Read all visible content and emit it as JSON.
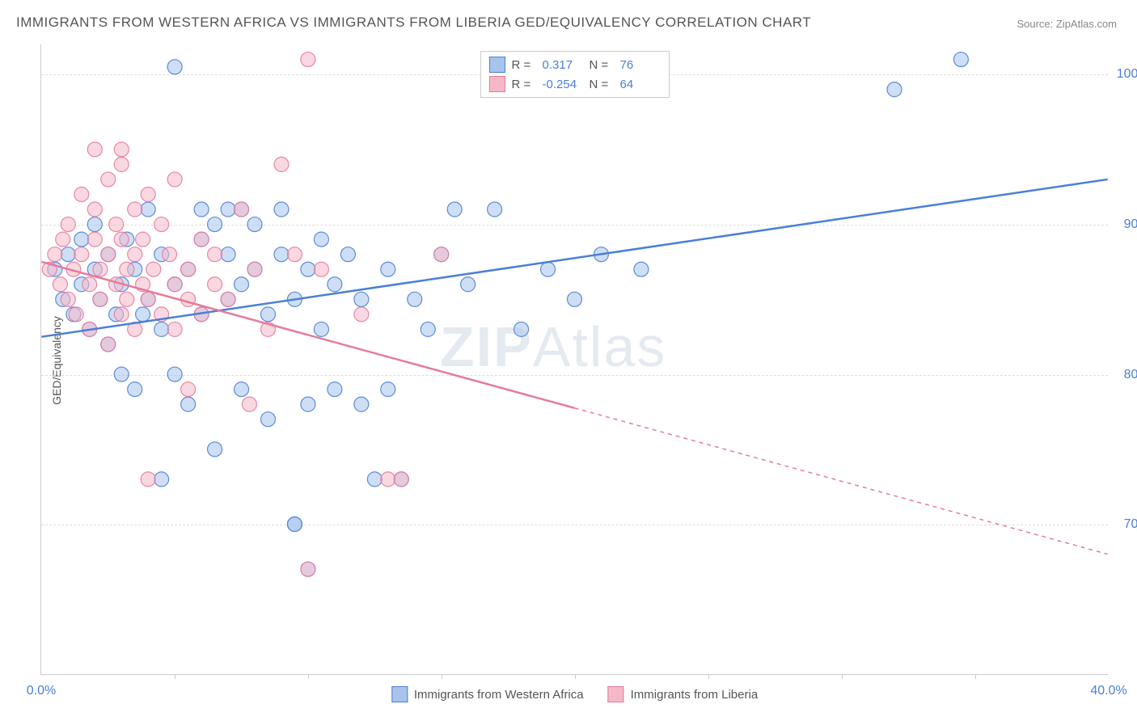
{
  "title": "IMMIGRANTS FROM WESTERN AFRICA VS IMMIGRANTS FROM LIBERIA GED/EQUIVALENCY CORRELATION CHART",
  "source": "Source: ZipAtlas.com",
  "ylabel": "GED/Equivalency",
  "watermark_bold": "ZIP",
  "watermark_rest": "Atlas",
  "chart": {
    "type": "scatter",
    "xlim": [
      0,
      40
    ],
    "ylim": [
      60,
      102
    ],
    "xticks": [
      0,
      40
    ],
    "xtick_labels": [
      "0.0%",
      "40.0%"
    ],
    "xtick_marks": [
      5,
      10,
      15,
      20,
      25,
      30,
      35
    ],
    "yticks": [
      70,
      80,
      90,
      100
    ],
    "ytick_labels": [
      "70.0%",
      "80.0%",
      "90.0%",
      "100.0%"
    ],
    "grid_color": "#dddddd",
    "background_color": "#ffffff",
    "axis_color": "#cccccc",
    "tick_label_color": "#4a7fd8",
    "title_fontsize": 17,
    "label_fontsize": 14,
    "tick_fontsize": 16,
    "marker_radius": 9,
    "marker_opacity": 0.55,
    "marker_stroke_opacity": 0.9,
    "series": [
      {
        "name": "Immigrants from Western Africa",
        "short": "western_africa",
        "color_fill": "#a6c4ec",
        "color_stroke": "#4a7fd8",
        "R": "0.317",
        "N": "76",
        "trend": {
          "x1": 0,
          "y1": 82.5,
          "x2": 40,
          "y2": 93.0,
          "solid_until": 40,
          "line_width": 2.5
        },
        "points": [
          [
            0.5,
            87
          ],
          [
            0.8,
            85
          ],
          [
            1.0,
            88
          ],
          [
            1.2,
            84
          ],
          [
            1.5,
            86
          ],
          [
            1.5,
            89
          ],
          [
            1.8,
            83
          ],
          [
            2.0,
            87
          ],
          [
            2.0,
            90
          ],
          [
            2.2,
            85
          ],
          [
            2.5,
            82
          ],
          [
            2.5,
            88
          ],
          [
            2.8,
            84
          ],
          [
            3.0,
            86
          ],
          [
            3.0,
            80
          ],
          [
            3.2,
            89
          ],
          [
            3.5,
            87
          ],
          [
            3.5,
            79
          ],
          [
            3.8,
            84
          ],
          [
            4.0,
            85
          ],
          [
            4.0,
            91
          ],
          [
            4.5,
            83
          ],
          [
            4.5,
            88
          ],
          [
            5.0,
            86
          ],
          [
            5.0,
            80
          ],
          [
            5.0,
            100.5
          ],
          [
            5.5,
            87
          ],
          [
            5.5,
            78
          ],
          [
            6.0,
            89
          ],
          [
            6.0,
            84
          ],
          [
            6.5,
            90
          ],
          [
            6.5,
            75
          ],
          [
            7.0,
            88
          ],
          [
            7.0,
            85
          ],
          [
            7.0,
            91
          ],
          [
            7.5,
            86
          ],
          [
            7.5,
            79
          ],
          [
            8.0,
            87
          ],
          [
            8.0,
            90
          ],
          [
            8.5,
            84
          ],
          [
            8.5,
            77
          ],
          [
            9.0,
            88
          ],
          [
            9.0,
            91
          ],
          [
            9.5,
            85
          ],
          [
            9.5,
            70
          ],
          [
            10.0,
            87
          ],
          [
            10.0,
            78
          ],
          [
            10.5,
            89
          ],
          [
            10.5,
            83
          ],
          [
            11.0,
            86
          ],
          [
            11.0,
            79
          ],
          [
            11.5,
            88
          ],
          [
            12.0,
            78
          ],
          [
            12.0,
            85
          ],
          [
            12.5,
            73
          ],
          [
            13.0,
            87
          ],
          [
            13.0,
            79
          ],
          [
            13.5,
            73
          ],
          [
            14.0,
            85
          ],
          [
            14.5,
            83
          ],
          [
            15.0,
            88
          ],
          [
            15.5,
            91
          ],
          [
            16.0,
            86
          ],
          [
            17.0,
            91
          ],
          [
            18.0,
            83
          ],
          [
            19.0,
            87
          ],
          [
            20.0,
            85
          ],
          [
            21.0,
            88
          ],
          [
            22.5,
            87
          ],
          [
            32.0,
            99
          ],
          [
            34.5,
            101
          ],
          [
            10.0,
            67
          ],
          [
            9.5,
            70
          ],
          [
            4.5,
            73
          ],
          [
            6.0,
            91
          ],
          [
            7.5,
            91
          ]
        ]
      },
      {
        "name": "Immigrants from Liberia",
        "short": "liberia",
        "color_fill": "#f5b8c8",
        "color_stroke": "#e77a9b",
        "R": "-0.254",
        "N": "64",
        "trend": {
          "x1": 0,
          "y1": 87.5,
          "x2": 40,
          "y2": 68.0,
          "solid_until": 20,
          "line_width": 2.5
        },
        "points": [
          [
            0.3,
            87
          ],
          [
            0.5,
            88
          ],
          [
            0.7,
            86
          ],
          [
            0.8,
            89
          ],
          [
            1.0,
            85
          ],
          [
            1.0,
            90
          ],
          [
            1.2,
            87
          ],
          [
            1.3,
            84
          ],
          [
            1.5,
            88
          ],
          [
            1.5,
            92
          ],
          [
            1.8,
            86
          ],
          [
            1.8,
            83
          ],
          [
            2.0,
            89
          ],
          [
            2.0,
            91
          ],
          [
            2.0,
            95
          ],
          [
            2.2,
            85
          ],
          [
            2.2,
            87
          ],
          [
            2.5,
            88
          ],
          [
            2.5,
            93
          ],
          [
            2.5,
            82
          ],
          [
            2.8,
            86
          ],
          [
            2.8,
            90
          ],
          [
            3.0,
            84
          ],
          [
            3.0,
            89
          ],
          [
            3.0,
            94
          ],
          [
            3.2,
            87
          ],
          [
            3.2,
            85
          ],
          [
            3.5,
            88
          ],
          [
            3.5,
            91
          ],
          [
            3.5,
            83
          ],
          [
            3.8,
            86
          ],
          [
            3.8,
            89
          ],
          [
            4.0,
            85
          ],
          [
            4.0,
            92
          ],
          [
            4.0,
            73
          ],
          [
            4.2,
            87
          ],
          [
            4.5,
            84
          ],
          [
            4.5,
            90
          ],
          [
            4.8,
            88
          ],
          [
            5.0,
            86
          ],
          [
            5.0,
            83
          ],
          [
            5.0,
            93
          ],
          [
            5.5,
            87
          ],
          [
            5.5,
            85
          ],
          [
            5.5,
            79
          ],
          [
            6.0,
            89
          ],
          [
            6.0,
            84
          ],
          [
            6.5,
            86
          ],
          [
            6.5,
            88
          ],
          [
            7.0,
            85
          ],
          [
            7.5,
            91
          ],
          [
            7.8,
            78
          ],
          [
            8.0,
            87
          ],
          [
            8.5,
            83
          ],
          [
            9.0,
            94
          ],
          [
            9.5,
            88
          ],
          [
            10.0,
            101
          ],
          [
            10.5,
            87
          ],
          [
            12.0,
            84
          ],
          [
            13.0,
            73
          ],
          [
            13.5,
            73
          ],
          [
            15.0,
            88
          ],
          [
            10.0,
            67
          ],
          [
            3.0,
            95
          ]
        ]
      }
    ]
  },
  "legend_top": {
    "r_label": "R =",
    "n_label": "N ="
  },
  "legend_bottom": {
    "items": [
      "Immigrants from Western Africa",
      "Immigrants from Liberia"
    ]
  }
}
